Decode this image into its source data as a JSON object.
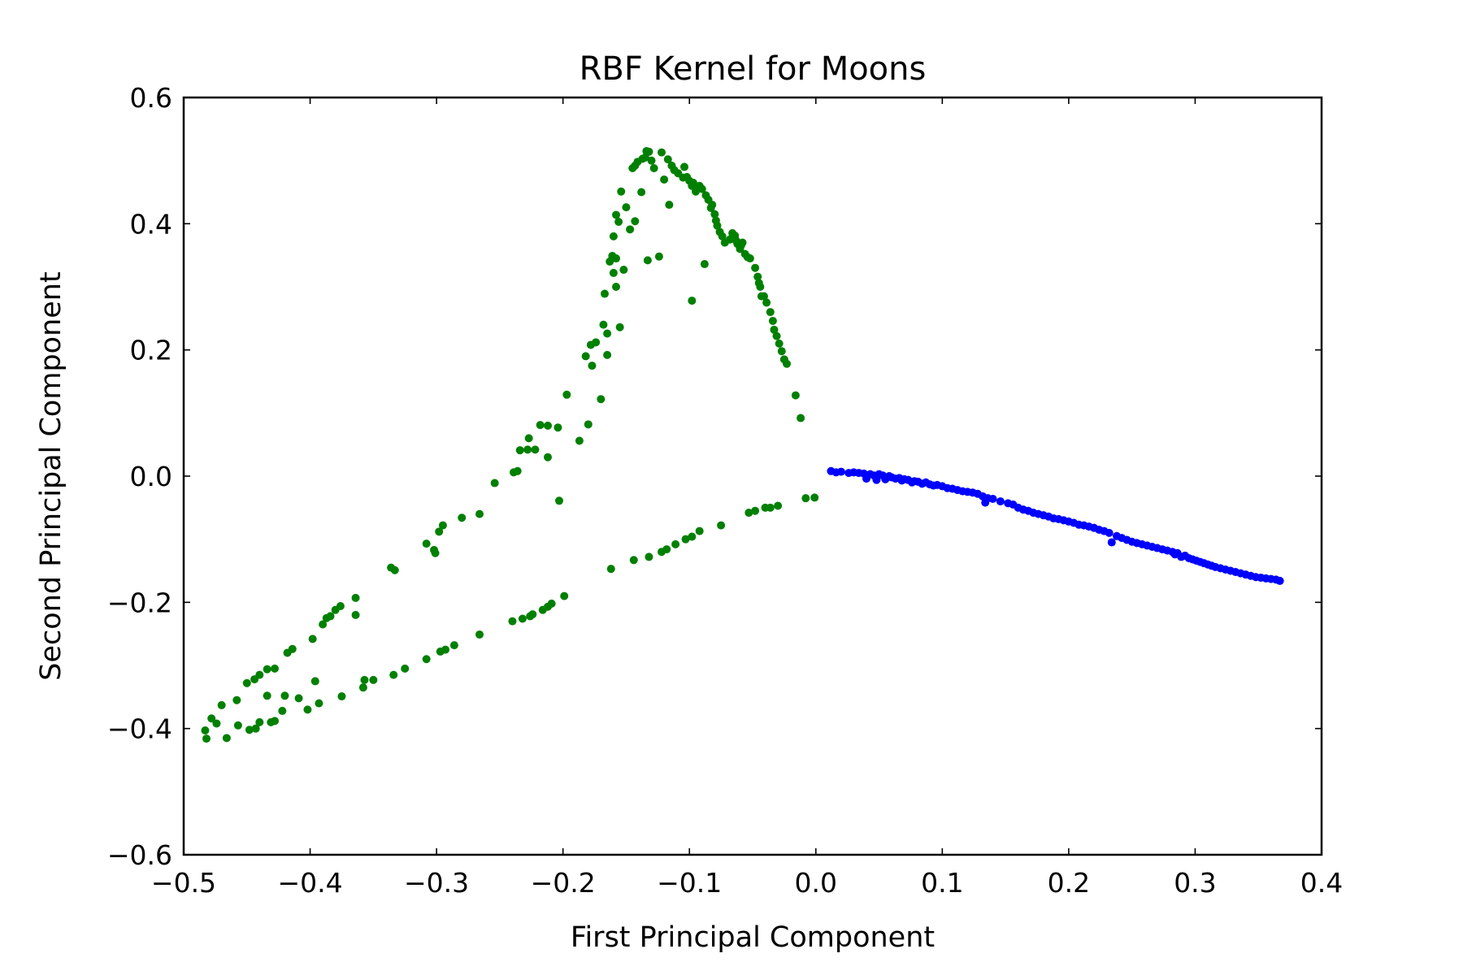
{
  "chart_data": {
    "type": "scatter",
    "title": "RBF Kernel for Moons",
    "xlabel": "First Principal Component",
    "ylabel": "Second Principal Component",
    "xlim": [
      -0.5,
      0.4
    ],
    "ylim": [
      -0.6,
      0.6
    ],
    "xticks": [
      -0.5,
      -0.4,
      -0.3,
      -0.2,
      -0.1,
      0.0,
      0.1,
      0.2,
      0.3,
      0.4
    ],
    "yticks": [
      -0.6,
      -0.4,
      -0.2,
      0.0,
      0.2,
      0.4,
      0.6
    ],
    "xtick_labels": [
      "−0.5",
      "−0.4",
      "−0.3",
      "−0.2",
      "−0.1",
      "0.0",
      "0.1",
      "0.2",
      "0.3",
      "0.4"
    ],
    "ytick_labels": [
      "−0.6",
      "−0.4",
      "−0.2",
      "0.0",
      "0.2",
      "0.4",
      "0.6"
    ],
    "grid": false,
    "series": [
      {
        "color": "#008000",
        "points": [
          [
            -0.483,
            -0.403
          ],
          [
            -0.482,
            -0.416
          ],
          [
            -0.478,
            -0.384
          ],
          [
            -0.474,
            -0.392
          ],
          [
            -0.47,
            -0.363
          ],
          [
            -0.466,
            -0.415
          ],
          [
            -0.458,
            -0.355
          ],
          [
            -0.457,
            -0.395
          ],
          [
            -0.45,
            -0.328
          ],
          [
            -0.448,
            -0.402
          ],
          [
            -0.444,
            -0.322
          ],
          [
            -0.443,
            -0.4
          ],
          [
            -0.44,
            -0.315
          ],
          [
            -0.44,
            -0.39
          ],
          [
            -0.434,
            -0.306
          ],
          [
            -0.434,
            -0.348
          ],
          [
            -0.431,
            -0.39
          ],
          [
            -0.428,
            -0.305
          ],
          [
            -0.428,
            -0.388
          ],
          [
            -0.422,
            -0.372
          ],
          [
            -0.42,
            -0.348
          ],
          [
            -0.418,
            -0.28
          ],
          [
            -0.414,
            -0.274
          ],
          [
            -0.409,
            -0.352
          ],
          [
            -0.402,
            -0.37
          ],
          [
            -0.398,
            -0.258
          ],
          [
            -0.396,
            -0.325
          ],
          [
            -0.393,
            -0.36
          ],
          [
            -0.39,
            -0.235
          ],
          [
            -0.387,
            -0.225
          ],
          [
            -0.384,
            -0.222
          ],
          [
            -0.38,
            -0.212
          ],
          [
            -0.376,
            -0.206
          ],
          [
            -0.375,
            -0.349
          ],
          [
            -0.364,
            -0.193
          ],
          [
            -0.364,
            -0.22
          ],
          [
            -0.358,
            -0.335
          ],
          [
            -0.357,
            -0.323
          ],
          [
            -0.35,
            -0.323
          ],
          [
            -0.336,
            -0.145
          ],
          [
            -0.333,
            -0.149
          ],
          [
            -0.334,
            -0.315
          ],
          [
            -0.325,
            -0.305
          ],
          [
            -0.308,
            -0.107
          ],
          [
            -0.308,
            -0.29
          ],
          [
            -0.302,
            -0.117
          ],
          [
            -0.301,
            -0.122
          ],
          [
            -0.298,
            -0.088
          ],
          [
            -0.295,
            -0.078
          ],
          [
            -0.297,
            -0.278
          ],
          [
            -0.293,
            -0.275
          ],
          [
            -0.286,
            -0.268
          ],
          [
            -0.28,
            -0.066
          ],
          [
            -0.266,
            -0.06
          ],
          [
            -0.266,
            -0.251
          ],
          [
            -0.254,
            -0.011
          ],
          [
            -0.239,
            0.006
          ],
          [
            -0.24,
            -0.23
          ],
          [
            -0.236,
            0.008
          ],
          [
            -0.234,
            0.041
          ],
          [
            -0.232,
            -0.226
          ],
          [
            -0.227,
            0.06
          ],
          [
            -0.228,
            0.042
          ],
          [
            -0.226,
            -0.222
          ],
          [
            -0.224,
            -0.219
          ],
          [
            -0.222,
            0.042
          ],
          [
            -0.218,
            0.081
          ],
          [
            -0.216,
            -0.212
          ],
          [
            -0.212,
            -0.207
          ],
          [
            -0.212,
            0.08
          ],
          [
            -0.212,
            0.03
          ],
          [
            -0.209,
            -0.202
          ],
          [
            -0.204,
            0.077
          ],
          [
            -0.203,
            -0.039
          ],
          [
            -0.199,
            -0.19
          ],
          [
            -0.197,
            0.129
          ],
          [
            -0.187,
            0.056
          ],
          [
            -0.182,
            0.19
          ],
          [
            -0.18,
            0.082
          ],
          [
            -0.178,
            0.208
          ],
          [
            -0.177,
            0.175
          ],
          [
            -0.174,
            0.212
          ],
          [
            -0.17,
            0.122
          ],
          [
            -0.168,
            0.24
          ],
          [
            -0.167,
            0.289
          ],
          [
            -0.165,
            0.192
          ],
          [
            -0.165,
            0.226
          ],
          [
            -0.163,
            0.34
          ],
          [
            -0.161,
            0.349
          ],
          [
            -0.16,
            0.322
          ],
          [
            -0.16,
            0.38
          ],
          [
            -0.158,
            0.345
          ],
          [
            -0.158,
            0.3
          ],
          [
            -0.158,
            0.414
          ],
          [
            -0.156,
            0.403
          ],
          [
            -0.155,
            0.236
          ],
          [
            -0.154,
            0.451
          ],
          [
            -0.152,
            0.327
          ],
          [
            -0.15,
            0.426
          ],
          [
            -0.147,
            0.391
          ],
          [
            -0.145,
            0.488
          ],
          [
            -0.143,
            0.404
          ],
          [
            -0.143,
            0.492
          ],
          [
            -0.141,
            0.498
          ],
          [
            -0.138,
            0.45
          ],
          [
            -0.137,
            0.503
          ],
          [
            -0.135,
            0.505
          ],
          [
            -0.134,
            0.515
          ],
          [
            -0.133,
            0.342
          ],
          [
            -0.132,
            0.514
          ],
          [
            -0.13,
            0.5
          ],
          [
            -0.128,
            0.488
          ],
          [
            -0.124,
            0.348
          ],
          [
            -0.122,
            0.513
          ],
          [
            -0.12,
            0.47
          ],
          [
            -0.117,
            0.502
          ],
          [
            -0.116,
            0.43
          ],
          [
            -0.114,
            0.492
          ],
          [
            -0.112,
            0.485
          ],
          [
            -0.109,
            0.48
          ],
          [
            -0.105,
            0.473
          ],
          [
            -0.104,
            0.49
          ],
          [
            -0.102,
            0.474
          ],
          [
            -0.1,
            0.468
          ],
          [
            -0.098,
            0.46
          ],
          [
            -0.098,
            0.278
          ],
          [
            -0.097,
            0.465
          ],
          [
            -0.095,
            0.451
          ],
          [
            -0.092,
            0.46
          ],
          [
            -0.09,
            0.455
          ],
          [
            -0.088,
            0.336
          ],
          [
            -0.087,
            0.445
          ],
          [
            -0.085,
            0.438
          ],
          [
            -0.083,
            0.425
          ],
          [
            -0.082,
            0.43
          ],
          [
            -0.08,
            0.415
          ],
          [
            -0.079,
            0.405
          ],
          [
            -0.078,
            0.397
          ],
          [
            -0.076,
            0.387
          ],
          [
            -0.074,
            0.38
          ],
          [
            -0.072,
            0.37
          ],
          [
            -0.068,
            0.375
          ],
          [
            -0.066,
            0.385
          ],
          [
            -0.064,
            0.381
          ],
          [
            -0.063,
            0.373
          ],
          [
            -0.062,
            0.368
          ],
          [
            -0.06,
            0.36
          ],
          [
            -0.059,
            0.366
          ],
          [
            -0.058,
            0.37
          ],
          [
            -0.056,
            0.352
          ],
          [
            -0.054,
            0.347
          ],
          [
            -0.052,
            0.345
          ],
          [
            -0.048,
            0.33
          ],
          [
            -0.046,
            0.316
          ],
          [
            -0.045,
            0.306
          ],
          [
            -0.044,
            0.3
          ],
          [
            -0.043,
            0.285
          ],
          [
            -0.041,
            0.285
          ],
          [
            -0.039,
            0.275
          ],
          [
            -0.036,
            0.26
          ],
          [
            -0.034,
            0.246
          ],
          [
            -0.033,
            0.232
          ],
          [
            -0.031,
            0.222
          ],
          [
            -0.029,
            0.21
          ],
          [
            -0.027,
            0.198
          ],
          [
            -0.025,
            0.185
          ],
          [
            -0.023,
            0.178
          ],
          [
            -0.016,
            0.128
          ],
          [
            -0.012,
            0.092
          ],
          [
            -0.008,
            -0.035
          ],
          [
            -0.001,
            -0.034
          ],
          [
            -0.03,
            -0.047
          ],
          [
            -0.036,
            -0.05
          ],
          [
            -0.04,
            -0.05
          ],
          [
            -0.048,
            -0.055
          ],
          [
            -0.053,
            -0.058
          ],
          [
            -0.075,
            -0.078
          ],
          [
            -0.092,
            -0.087
          ],
          [
            -0.098,
            -0.096
          ],
          [
            -0.103,
            -0.1
          ],
          [
            -0.111,
            -0.108
          ],
          [
            -0.118,
            -0.116
          ],
          [
            -0.122,
            -0.12
          ],
          [
            -0.132,
            -0.128
          ],
          [
            -0.144,
            -0.133
          ],
          [
            -0.162,
            -0.147
          ]
        ]
      },
      {
        "color": "#0000ff",
        "points": [
          [
            0.012,
            0.008
          ],
          [
            0.016,
            0.006
          ],
          [
            0.02,
            0.007
          ],
          [
            0.026,
            0.005
          ],
          [
            0.03,
            0.006
          ],
          [
            0.034,
            0.005
          ],
          [
            0.038,
            0.004
          ],
          [
            0.04,
            -0.004
          ],
          [
            0.043,
            0.003
          ],
          [
            0.046,
            0.001
          ],
          [
            0.048,
            -0.006
          ],
          [
            0.05,
            0.003
          ],
          [
            0.053,
            0.001
          ],
          [
            0.055,
            -0.005
          ],
          [
            0.058,
            0.0
          ],
          [
            0.06,
            -0.002
          ],
          [
            0.063,
            -0.004
          ],
          [
            0.066,
            -0.003
          ],
          [
            0.068,
            -0.007
          ],
          [
            0.07,
            -0.005
          ],
          [
            0.073,
            -0.006
          ],
          [
            0.076,
            -0.01
          ],
          [
            0.078,
            -0.008
          ],
          [
            0.081,
            -0.009
          ],
          [
            0.084,
            -0.012
          ],
          [
            0.087,
            -0.01
          ],
          [
            0.09,
            -0.013
          ],
          [
            0.093,
            -0.015
          ],
          [
            0.096,
            -0.014
          ],
          [
            0.1,
            -0.016
          ],
          [
            0.104,
            -0.019
          ],
          [
            0.108,
            -0.02
          ],
          [
            0.112,
            -0.022
          ],
          [
            0.116,
            -0.024
          ],
          [
            0.12,
            -0.025
          ],
          [
            0.124,
            -0.026
          ],
          [
            0.128,
            -0.028
          ],
          [
            0.132,
            -0.032
          ],
          [
            0.134,
            -0.042
          ],
          [
            0.136,
            -0.035
          ],
          [
            0.14,
            -0.036
          ],
          [
            0.146,
            -0.04
          ],
          [
            0.152,
            -0.043
          ],
          [
            0.156,
            -0.045
          ],
          [
            0.16,
            -0.05
          ],
          [
            0.164,
            -0.053
          ],
          [
            0.168,
            -0.055
          ],
          [
            0.172,
            -0.058
          ],
          [
            0.176,
            -0.06
          ],
          [
            0.18,
            -0.062
          ],
          [
            0.184,
            -0.064
          ],
          [
            0.188,
            -0.067
          ],
          [
            0.192,
            -0.068
          ],
          [
            0.196,
            -0.07
          ],
          [
            0.2,
            -0.072
          ],
          [
            0.204,
            -0.074
          ],
          [
            0.208,
            -0.077
          ],
          [
            0.212,
            -0.078
          ],
          [
            0.216,
            -0.08
          ],
          [
            0.22,
            -0.082
          ],
          [
            0.224,
            -0.085
          ],
          [
            0.228,
            -0.087
          ],
          [
            0.232,
            -0.09
          ],
          [
            0.234,
            -0.105
          ],
          [
            0.238,
            -0.095
          ],
          [
            0.242,
            -0.098
          ],
          [
            0.246,
            -0.101
          ],
          [
            0.25,
            -0.104
          ],
          [
            0.254,
            -0.106
          ],
          [
            0.258,
            -0.108
          ],
          [
            0.262,
            -0.11
          ],
          [
            0.266,
            -0.112
          ],
          [
            0.27,
            -0.114
          ],
          [
            0.274,
            -0.116
          ],
          [
            0.278,
            -0.118
          ],
          [
            0.282,
            -0.12
          ],
          [
            0.284,
            -0.124
          ],
          [
            0.286,
            -0.122
          ],
          [
            0.289,
            -0.128
          ],
          [
            0.292,
            -0.126
          ],
          [
            0.295,
            -0.13
          ],
          [
            0.298,
            -0.132
          ],
          [
            0.301,
            -0.134
          ],
          [
            0.304,
            -0.136
          ],
          [
            0.307,
            -0.138
          ],
          [
            0.31,
            -0.14
          ],
          [
            0.313,
            -0.142
          ],
          [
            0.316,
            -0.144
          ],
          [
            0.32,
            -0.146
          ],
          [
            0.324,
            -0.148
          ],
          [
            0.328,
            -0.15
          ],
          [
            0.332,
            -0.152
          ],
          [
            0.336,
            -0.154
          ],
          [
            0.34,
            -0.156
          ],
          [
            0.344,
            -0.158
          ],
          [
            0.348,
            -0.16
          ],
          [
            0.352,
            -0.161
          ],
          [
            0.356,
            -0.162
          ],
          [
            0.36,
            -0.163
          ],
          [
            0.364,
            -0.164
          ],
          [
            0.367,
            -0.166
          ]
        ]
      }
    ]
  }
}
